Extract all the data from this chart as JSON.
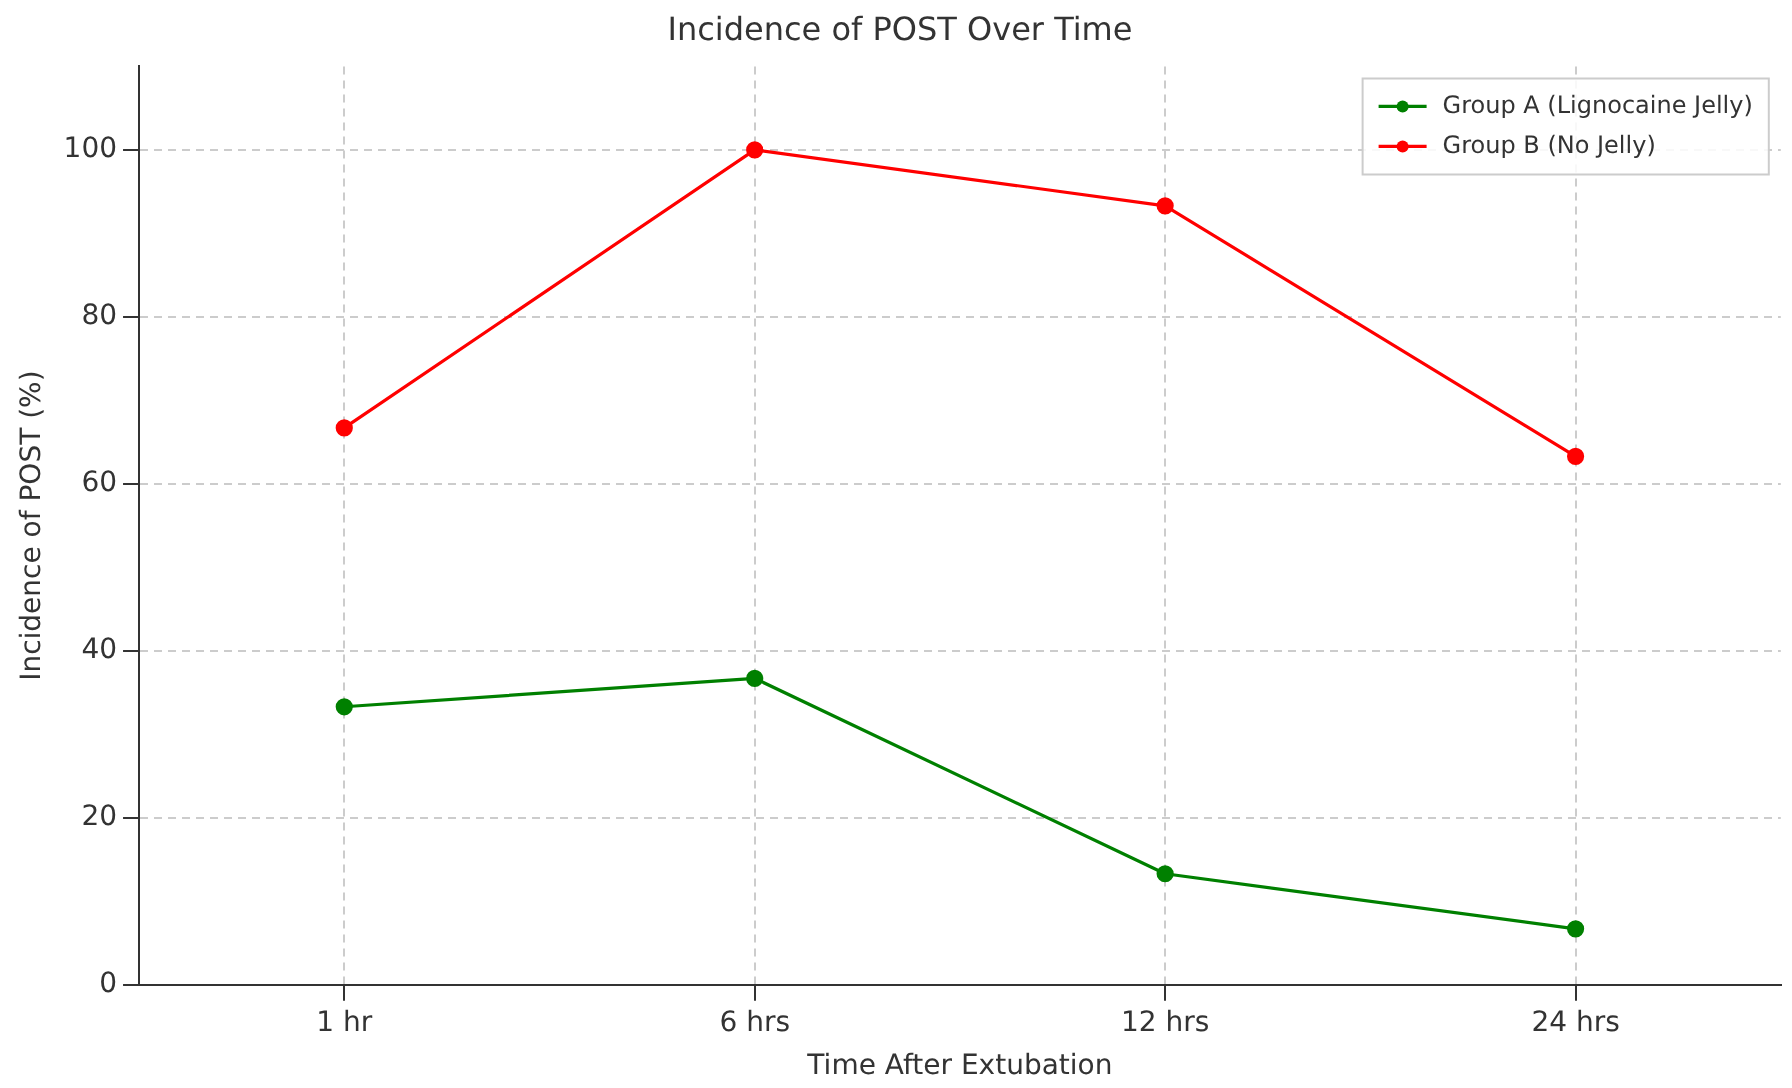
{
  "chart_data": {
    "type": "line",
    "title": "Incidence of POST Over Time",
    "xlabel": "Time After Extubation",
    "ylabel": "Incidence of POST (%)",
    "categories": [
      "1 hr",
      "6 hrs",
      "12 hrs",
      "24 hrs"
    ],
    "series": [
      {
        "name": "Group A (Lignocaine Jelly)",
        "color": "#008000",
        "values": [
          33.3,
          36.7,
          13.3,
          6.7
        ]
      },
      {
        "name": "Group B (No Jelly)",
        "color": "#ff0000",
        "values": [
          66.7,
          100,
          93.3,
          63.3
        ]
      }
    ],
    "ylim": [
      0,
      110
    ],
    "yticks": [
      0,
      20,
      40,
      60,
      80,
      100
    ],
    "grid": true,
    "legend": "top right",
    "marker": "circle",
    "line_style": "solid"
  }
}
